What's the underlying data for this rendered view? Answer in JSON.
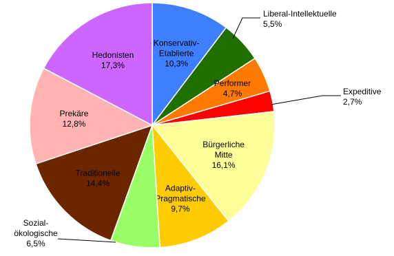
{
  "chart_data": {
    "type": "pie",
    "title": "",
    "slices": [
      {
        "name": [
          "Konservativ-",
          "Etablierte"
        ],
        "value": 10.3,
        "label": "10,3%",
        "color": "#3f7fff",
        "text_color": "#ffffff"
      },
      {
        "name": [
          "Liberal-Intellektuelle"
        ],
        "value": 5.5,
        "label": "5,5%",
        "color": "#1f6e00",
        "text_color": "#000000"
      },
      {
        "name": [
          "Performer"
        ],
        "value": 4.7,
        "label": "4,7%",
        "color": "#ff7a00",
        "text_color": "#000000"
      },
      {
        "name": [
          "Expeditive"
        ],
        "value": 2.7,
        "label": "2,7%",
        "color": "#ff0000",
        "text_color": "#000000"
      },
      {
        "name": [
          "Bürgerliche",
          "Mitte"
        ],
        "value": 16.1,
        "label": "16,1%",
        "color": "#ffff99",
        "text_color": "#000000"
      },
      {
        "name": [
          "Adaptiv-",
          "Pragmatische"
        ],
        "value": 9.7,
        "label": "9,7%",
        "color": "#ffcc00",
        "text_color": "#000000"
      },
      {
        "name": [
          "Sozial-",
          "ökologische"
        ],
        "value": 6.5,
        "label": "6,5%",
        "color": "#99ff66",
        "text_color": "#000000"
      },
      {
        "name": [
          "Traditionelle"
        ],
        "value": 14.4,
        "label": "14,4%",
        "color": "#6b2600",
        "text_color": "#ffffff"
      },
      {
        "name": [
          "Prekäre"
        ],
        "value": 12.8,
        "label": "12,8%",
        "color": "#ffb3b3",
        "text_color": "#000000"
      },
      {
        "name": [
          "Hedonisten"
        ],
        "value": 17.3,
        "label": "17,3%",
        "color": "#cc66ff",
        "text_color": "#000000"
      }
    ]
  }
}
